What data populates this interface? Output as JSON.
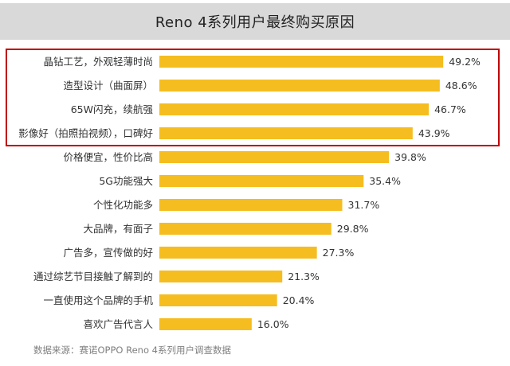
{
  "title": "Reno 4系列用户最终购买原因",
  "source": "数据来源：赛诺OPPO Reno 4系列用户调查数据",
  "colors": {
    "bar": "#f5bd1f",
    "title_bg": "#d9d9d9",
    "highlight_box": "#c00000"
  },
  "chart_data": {
    "type": "bar",
    "orientation": "horizontal",
    "title": "Reno 4系列用户最终购买原因",
    "categories": [
      "晶钻工艺，外观轻薄时尚",
      "造型设计（曲面屏）",
      "65W闪充，续航强",
      "影像好（拍照拍视频），口碑好",
      "价格便宜，性价比高",
      "5G功能强大",
      "个性化功能多",
      "大品牌，有面子",
      "广告多，宣传做的好",
      "通过综艺节目接触了解到的",
      "一直使用这个品牌的手机",
      "喜欢广告代言人"
    ],
    "values": [
      49.2,
      48.6,
      46.7,
      43.9,
      39.8,
      35.4,
      31.7,
      29.8,
      27.3,
      21.3,
      20.4,
      16.0
    ],
    "value_labels": [
      "49.2%",
      "48.6%",
      "46.7%",
      "43.9%",
      "39.8%",
      "35.4%",
      "31.7%",
      "29.8%",
      "27.3%",
      "21.3%",
      "20.4%",
      "16.0%"
    ],
    "highlighted_count": 4,
    "xlim": [
      0,
      50
    ],
    "grid": false,
    "legend": "none"
  }
}
